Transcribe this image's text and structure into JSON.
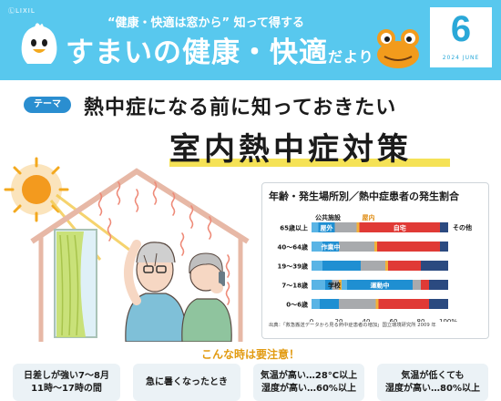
{
  "header": {
    "brand": "ⓁLIXIL",
    "tagline": "“健康・快適は窓から” 知って得する",
    "title_main": "すまいの健康・快適",
    "title_suffix": "だより",
    "issue_number": "6",
    "issue_date": "2024 JUNE"
  },
  "article": {
    "theme_label": "テーマ",
    "headline_top": "熱中症になる前に知っておきたい",
    "headline_main": "室内熱中症対策"
  },
  "chart_data": {
    "type": "bar",
    "stacked": true,
    "orientation": "horizontal",
    "title": "年齢・発生場所別／熱中症患者の発生割合",
    "categories": [
      "65歳以上",
      "40〜64歳",
      "19〜39歳",
      "7〜18歳",
      "0〜6歳"
    ],
    "xlim": [
      0,
      100
    ],
    "x_ticks": [
      "0",
      "20",
      "40",
      "60",
      "80",
      "100%"
    ],
    "series": [
      {
        "name": "公共施設",
        "color": "#5ab4e5",
        "values": [
          5,
          8,
          8,
          10,
          6
        ]
      },
      {
        "name": "屋外",
        "color": "#1f8fd2",
        "values": [
          12,
          12,
          28,
          5,
          14
        ]
      },
      {
        "name": "",
        "color": "#a8aaad",
        "values": [
          16,
          26,
          18,
          5,
          27
        ]
      },
      {
        "name": "",
        "color": "#f2b23a",
        "values": [
          2,
          2,
          2,
          2,
          2
        ]
      },
      {
        "name": "",
        "color": "#5ab4e5",
        "values": [
          0,
          0,
          0,
          4,
          0
        ]
      },
      {
        "name": "",
        "color": "#1f8fd2",
        "values": [
          0,
          0,
          0,
          48,
          0
        ]
      },
      {
        "name": "",
        "color": "#a8aaad",
        "values": [
          0,
          0,
          0,
          6,
          0
        ]
      },
      {
        "name": "自宅",
        "color": "#e03a36",
        "values": [
          59,
          46,
          24,
          6,
          37
        ]
      },
      {
        "name": "その他",
        "color": "#2b4a80",
        "values": [
          6,
          6,
          20,
          14,
          14
        ]
      }
    ],
    "annotations": [
      "学校",
      "作業中",
      "運動中",
      "屋内"
    ],
    "source": "出典：「救急搬送データから見る熱中症患者の増加」国立環境研究所 2009 年"
  },
  "alert": {
    "title": "こんな時は要注意！",
    "cards": [
      {
        "line1": "日差しが強い7〜8月",
        "line2": "11時〜17時の間"
      },
      {
        "line1": "急に暑くなったとき",
        "line2": ""
      },
      {
        "line1": "気温が高い…28°C以上",
        "line2": "湿度が高い…60%以上"
      },
      {
        "line1": "気温が低くても",
        "line2": "湿度が高い…80%以上"
      }
    ]
  }
}
